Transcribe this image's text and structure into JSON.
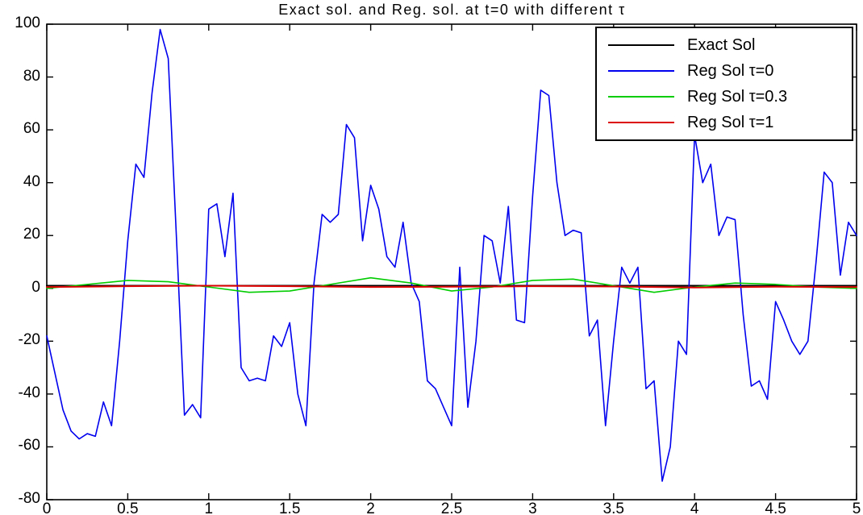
{
  "chart_data": {
    "type": "line",
    "title": "Exact sol. and Reg. sol. at t=0 with different τ",
    "xlabel": "",
    "ylabel": "",
    "xlim": [
      0,
      5
    ],
    "ylim": [
      -80,
      100
    ],
    "xticks": [
      0,
      0.5,
      1,
      1.5,
      2,
      2.5,
      3,
      3.5,
      4,
      4.5,
      5
    ],
    "xtick_labels": [
      "0",
      "0.5",
      "1",
      "1.5",
      "2",
      "2.5",
      "3",
      "3.5",
      "4",
      "4.5",
      "5"
    ],
    "yticks": [
      100,
      80,
      60,
      40,
      20,
      0,
      -20,
      -40,
      -60,
      -80
    ],
    "ytick_labels": [
      "100",
      "80",
      "60",
      "40",
      "20",
      "0",
      "-20",
      "-40",
      "-60",
      "-80"
    ],
    "grid": false,
    "legend_position": "top-right",
    "axis_color": "#000000",
    "series": [
      {
        "name": "Exact Sol",
        "color": "#000000",
        "width": 2,
        "x": [
          0,
          5
        ],
        "y": [
          1,
          1
        ]
      },
      {
        "name": "Reg Sol τ=0",
        "color": "#0000ee",
        "width": 1.6,
        "x": [
          0,
          0.05,
          0.1,
          0.15,
          0.2,
          0.25,
          0.3,
          0.35,
          0.4,
          0.45,
          0.5,
          0.55,
          0.6,
          0.65,
          0.7,
          0.75,
          0.8,
          0.85,
          0.9,
          0.95,
          1,
          1.05,
          1.1,
          1.15,
          1.2,
          1.25,
          1.3,
          1.35,
          1.4,
          1.45,
          1.5,
          1.55,
          1.6,
          1.65,
          1.7,
          1.75,
          1.8,
          1.85,
          1.9,
          1.95,
          2,
          2.05,
          2.1,
          2.15,
          2.2,
          2.25,
          2.3,
          2.35,
          2.4,
          2.45,
          2.5,
          2.55,
          2.6,
          2.65,
          2.7,
          2.75,
          2.8,
          2.85,
          2.9,
          2.95,
          3,
          3.05,
          3.1,
          3.15,
          3.2,
          3.25,
          3.3,
          3.35,
          3.4,
          3.45,
          3.5,
          3.55,
          3.6,
          3.65,
          3.7,
          3.75,
          3.8,
          3.85,
          3.9,
          3.95,
          4,
          4.05,
          4.1,
          4.15,
          4.2,
          4.25,
          4.3,
          4.35,
          4.4,
          4.45,
          4.5,
          4.55,
          4.6,
          4.65,
          4.7,
          4.75,
          4.8,
          4.85,
          4.9,
          4.95,
          5
        ],
        "y": [
          -18,
          -32,
          -46,
          -54,
          -57,
          -55,
          -56,
          -43,
          -52,
          -20,
          18,
          47,
          42,
          74,
          98,
          87,
          20,
          -48,
          -44,
          -49,
          30,
          32,
          12,
          36,
          -30,
          -35,
          -34,
          -35,
          -18,
          -22,
          -13,
          -40,
          -52,
          2,
          28,
          25,
          28,
          62,
          57,
          18,
          39,
          30,
          12,
          8,
          25,
          2,
          -5,
          -35,
          -38,
          -45,
          -52,
          8,
          -45,
          -20,
          20,
          18,
          2,
          31,
          -12,
          -13,
          35,
          75,
          73,
          40,
          20,
          22,
          21,
          -18,
          -12,
          -52,
          -20,
          8,
          2,
          8,
          -38,
          -35,
          -73,
          -60,
          -20,
          -25,
          58,
          40,
          47,
          20,
          27,
          26,
          -10,
          -37,
          -35,
          -42,
          -5,
          -12,
          -20,
          -25,
          -20,
          10,
          44,
          40,
          5,
          25,
          20
        ]
      },
      {
        "name": "Reg Sol τ=0.3",
        "color": "#00cc00",
        "width": 1.6,
        "x": [
          0,
          0.25,
          0.5,
          0.75,
          1,
          1.25,
          1.5,
          1.75,
          2,
          2.25,
          2.5,
          2.75,
          3,
          3.25,
          3.5,
          3.75,
          4,
          4.25,
          4.5,
          4.75,
          5
        ],
        "y": [
          0,
          1.5,
          3,
          2.5,
          0.5,
          -1.5,
          -1,
          1.5,
          4,
          2,
          -1,
          0.5,
          3,
          3.5,
          1,
          -1.5,
          0.5,
          2,
          1.5,
          0.5,
          0
        ]
      },
      {
        "name": "Reg Sol τ=1",
        "color": "#dd0000",
        "width": 2,
        "x": [
          0,
          0.5,
          1,
          1.5,
          2,
          2.5,
          3,
          3.5,
          4,
          4.5,
          5
        ],
        "y": [
          0.5,
          0.8,
          1,
          0.8,
          0.5,
          0.6,
          0.8,
          0.7,
          0.3,
          0.6,
          0.5
        ]
      }
    ]
  }
}
